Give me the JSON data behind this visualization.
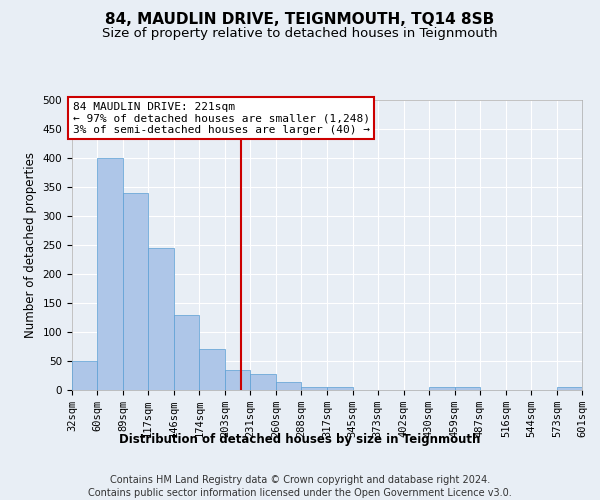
{
  "title": "84, MAUDLIN DRIVE, TEIGNMOUTH, TQ14 8SB",
  "subtitle": "Size of property relative to detached houses in Teignmouth",
  "xlabel": "Distribution of detached houses by size in Teignmouth",
  "ylabel": "Number of detached properties",
  "footer_line1": "Contains HM Land Registry data © Crown copyright and database right 2024.",
  "footer_line2": "Contains public sector information licensed under the Open Government Licence v3.0.",
  "annotation_line1": "84 MAUDLIN DRIVE: 221sqm",
  "annotation_line2": "← 97% of detached houses are smaller (1,248)",
  "annotation_line3": "3% of semi-detached houses are larger (40) →",
  "bar_color": "#aec6e8",
  "bar_edge_color": "#5a9fd4",
  "vline_color": "#cc0000",
  "vline_x": 221,
  "background_color": "#e8eef5",
  "plot_bg_color": "#e8eef5",
  "bins": [
    32,
    60,
    89,
    117,
    146,
    174,
    203,
    231,
    260,
    288,
    317,
    345,
    373,
    402,
    430,
    459,
    487,
    516,
    544,
    573,
    601
  ],
  "counts": [
    50,
    400,
    340,
    245,
    130,
    70,
    35,
    28,
    14,
    5,
    5,
    0,
    0,
    0,
    5,
    5,
    0,
    0,
    0,
    5
  ],
  "ylim": [
    0,
    500
  ],
  "yticks": [
    0,
    50,
    100,
    150,
    200,
    250,
    300,
    350,
    400,
    450,
    500
  ],
  "annotation_box_color": "#ffffff",
  "annotation_box_edge": "#cc0000",
  "title_fontsize": 11,
  "subtitle_fontsize": 9.5,
  "axis_label_fontsize": 8.5,
  "tick_fontsize": 7.5,
  "footer_fontsize": 7,
  "annotation_fontsize": 8
}
